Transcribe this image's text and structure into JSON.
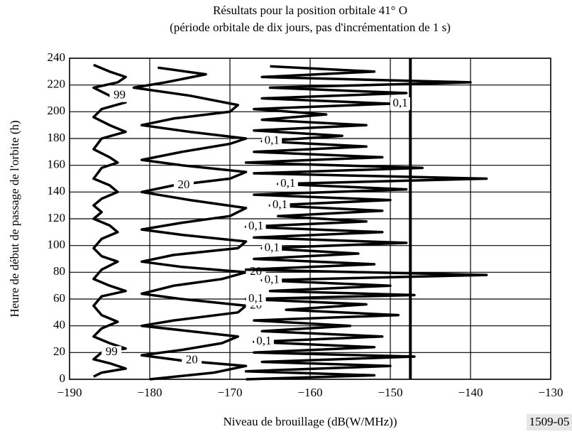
{
  "chart_data": {
    "type": "line",
    "title": "Résultats pour la position orbitale 41° O",
    "subtitle": "(période orbitale de dix jours, pas d'incrémentation de 1 s)",
    "xlabel": "Niveau de brouillage (dB(W/MHz))",
    "ylabel": "Heure de début de passage de l'orbite (h)",
    "figure_id": "1509-05",
    "xlim": [
      -190,
      -130
    ],
    "xticks": [
      {
        "value": -190,
        "label": "−190"
      },
      {
        "value": -180,
        "label": "−180"
      },
      {
        "value": -170,
        "label": "−170"
      },
      {
        "value": -160,
        "label": "−160"
      },
      {
        "value": -150,
        "label": "−150"
      },
      {
        "value": -140,
        "label": "−140"
      },
      {
        "value": -130,
        "label": "−130"
      }
    ],
    "ylim": [
      0,
      240
    ],
    "yticks": [
      0,
      20,
      40,
      60,
      80,
      100,
      120,
      140,
      160,
      180,
      200,
      220,
      240
    ],
    "grid": true,
    "reference_x": -147.5,
    "series": [
      {
        "name": "99",
        "color": "#000000",
        "values": [
          2,
          5,
          8,
          12,
          15,
          20,
          23,
          27,
          32,
          38,
          43,
          48,
          55,
          62,
          66,
          70,
          75,
          82,
          88,
          92,
          98,
          105,
          110,
          115,
          120,
          125,
          130,
          135,
          140,
          145,
          150,
          158,
          162,
          166,
          172,
          180,
          185,
          190,
          196,
          202,
          207,
          212,
          218,
          222,
          226,
          230,
          235
        ],
        "x": [
          -187,
          -186,
          -183,
          -185,
          -187,
          -186,
          -183,
          -185,
          -187,
          -186,
          -184,
          -186,
          -187,
          -186,
          -183,
          -185,
          -187,
          -186,
          -184,
          -186,
          -187,
          -186,
          -184,
          -185,
          -187,
          -186,
          -187,
          -186,
          -184,
          -185,
          -187,
          -186,
          -184,
          -185,
          -187,
          -186,
          -183,
          -185,
          -187,
          -186,
          -183,
          -185,
          -187,
          -184,
          -183,
          -185,
          -187
        ]
      },
      {
        "name": "20",
        "color": "#000000",
        "values": [
          0,
          5,
          10,
          14,
          18,
          22,
          27,
          32,
          36,
          40,
          44,
          50,
          55,
          60,
          64,
          70,
          75,
          80,
          84,
          88,
          93,
          98,
          103,
          108,
          112,
          117,
          122,
          128,
          134,
          140,
          145,
          150,
          155,
          160,
          164,
          170,
          176,
          180,
          185,
          190,
          195,
          200,
          205,
          212,
          218,
          222,
          228,
          233
        ],
        "x": [
          -180,
          -172,
          -168,
          -176,
          -181,
          -176,
          -171,
          -169,
          -175,
          -181,
          -177,
          -169,
          -168,
          -176,
          -181,
          -177,
          -171,
          -168,
          -176,
          -181,
          -177,
          -169,
          -168,
          -176,
          -181,
          -176,
          -170,
          -168,
          -175,
          -181,
          -177,
          -170,
          -168,
          -176,
          -181,
          -176,
          -170,
          -168,
          -175,
          -181,
          -177,
          -170,
          -169,
          -175,
          -182,
          -178,
          -173,
          -179
        ]
      },
      {
        "name": "0,1",
        "color": "#000000",
        "values": [
          0,
          3,
          6,
          10,
          13,
          17,
          20,
          24,
          28,
          32,
          36,
          40,
          44,
          48,
          52,
          56,
          60,
          63,
          66,
          70,
          74,
          78,
          82,
          86,
          90,
          94,
          98,
          102,
          106,
          110,
          114,
          118,
          122,
          126,
          130,
          134,
          138,
          142,
          146,
          150,
          154,
          158,
          162,
          166,
          170,
          174,
          178,
          182,
          186,
          190,
          194,
          198,
          202,
          206,
          210,
          214,
          218,
          222,
          226,
          230,
          234
        ],
        "x": [
          -168,
          -152,
          -168,
          -150,
          -166,
          -147,
          -167,
          -152,
          -167,
          -151,
          -166,
          -155,
          -167,
          -149,
          -163,
          -153,
          -168,
          -147,
          -165,
          -150,
          -166,
          -138,
          -168,
          -152,
          -167,
          -154,
          -166,
          -148,
          -167,
          -151,
          -168,
          -153,
          -164,
          -151,
          -165,
          -150,
          -167,
          -148,
          -164,
          -138,
          -167,
          -146,
          -168,
          -151,
          -167,
          -153,
          -166,
          -156,
          -167,
          -153,
          -166,
          -158,
          -167,
          -150,
          -166,
          -148,
          -165,
          -140,
          -166,
          -152,
          -165
        ]
      }
    ]
  }
}
